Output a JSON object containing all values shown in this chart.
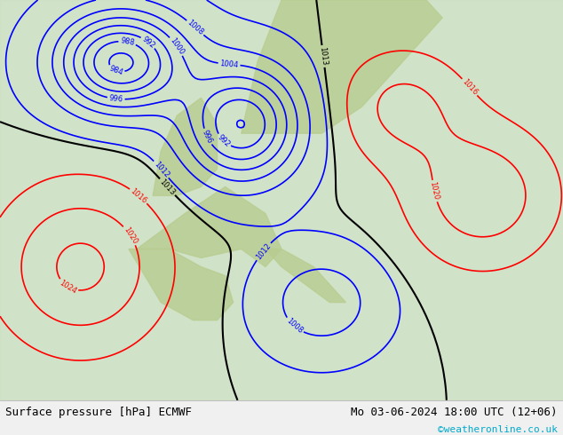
{
  "title_left": "Surface pressure [hPa] ECMWF",
  "title_right": "Mo 03-06-2024 18:00 UTC (12+06)",
  "copyright": "©weatheronline.co.uk",
  "bg_color": "#e8f4e8",
  "land_color": "#c8dca8",
  "sea_color": "#ddeeff",
  "footer_bg": "#f0f0f0",
  "text_color": "#000000",
  "cyan_color": "#00aacc",
  "figsize": [
    6.34,
    4.9
  ],
  "dpi": 100
}
